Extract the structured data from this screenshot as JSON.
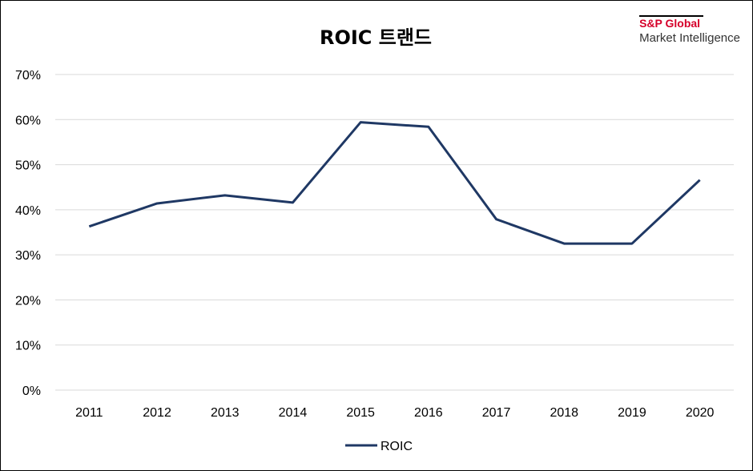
{
  "chart_data": {
    "type": "line",
    "title": "ROIC 트랜드",
    "categories": [
      "2011",
      "2012",
      "2013",
      "2014",
      "2015",
      "2016",
      "2017",
      "2018",
      "2019",
      "2020"
    ],
    "series": [
      {
        "name": "ROIC",
        "color": "#1f3864",
        "values": [
          36.3,
          41.4,
          43.2,
          41.6,
          59.4,
          58.4,
          37.9,
          32.5,
          32.5,
          46.6
        ]
      }
    ],
    "ylim": [
      0,
      70
    ],
    "yticks": [
      "0%",
      "10%",
      "20%",
      "30%",
      "40%",
      "50%",
      "60%",
      "70%"
    ],
    "ytick_values": [
      0,
      10,
      20,
      30,
      40,
      50,
      60,
      70
    ],
    "grid": true,
    "legend_position": "bottom-center"
  },
  "logo": {
    "line1": "S&P Global",
    "line2": "Market Intelligence"
  }
}
